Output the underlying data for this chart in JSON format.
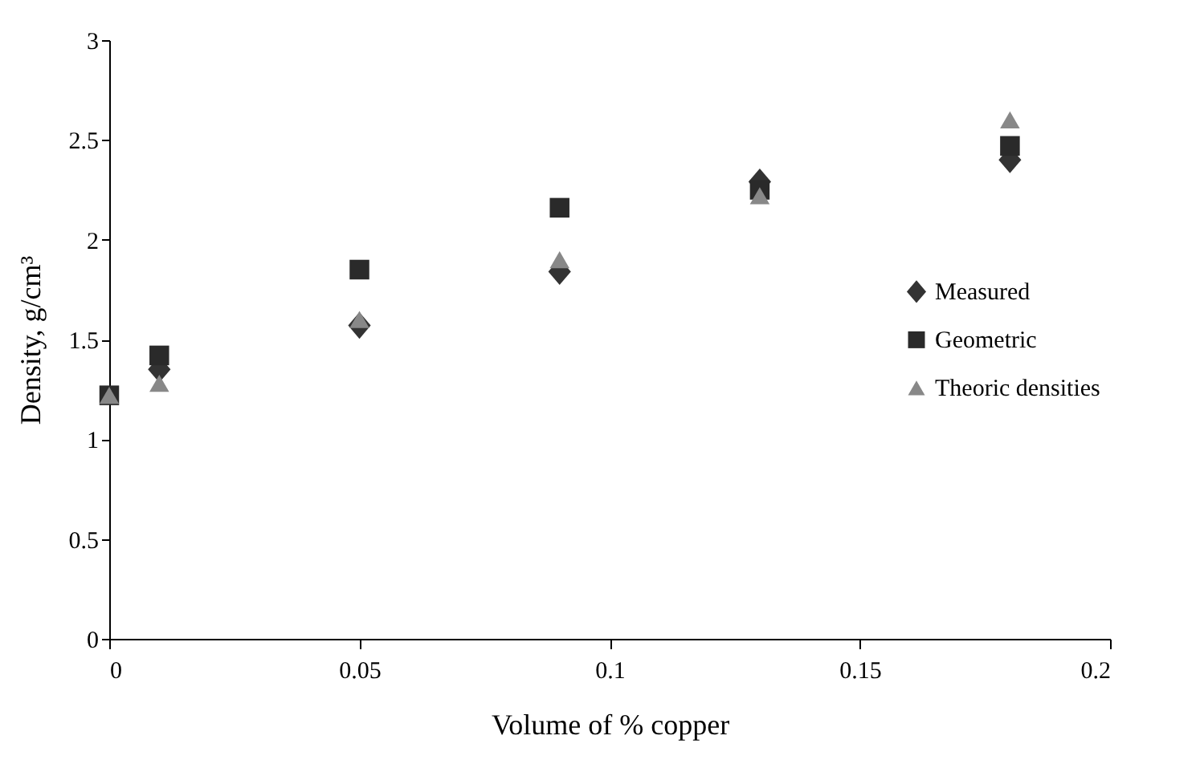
{
  "chart_data": {
    "type": "scatter",
    "xlabel": "Volume of % copper",
    "ylabel": "Density, g/cm³",
    "x": [
      0,
      0.01,
      0.05,
      0.09,
      0.13,
      0.18
    ],
    "series": [
      {
        "name": "Measured",
        "color": "#333333",
        "marker": "diamond",
        "values": [
          null,
          1.35,
          1.57,
          1.84,
          2.29,
          2.4
        ]
      },
      {
        "name": "Geometric",
        "color": "#2a2a2a",
        "marker": "square",
        "values": [
          1.22,
          1.42,
          1.85,
          2.16,
          2.25,
          2.47
        ]
      },
      {
        "name": "Theoric densities",
        "color": "#888888",
        "marker": "triangle",
        "values": [
          1.22,
          1.28,
          1.6,
          1.9,
          2.22,
          2.6
        ]
      }
    ],
    "xlim": [
      0,
      0.2
    ],
    "xticks": [
      0,
      0.05,
      0.1,
      0.15,
      0.2
    ],
    "ylim": [
      0,
      3
    ],
    "yticks": [
      0,
      0.5,
      1,
      1.5,
      2,
      2.5,
      3
    ],
    "grid": false,
    "legend": "right"
  }
}
